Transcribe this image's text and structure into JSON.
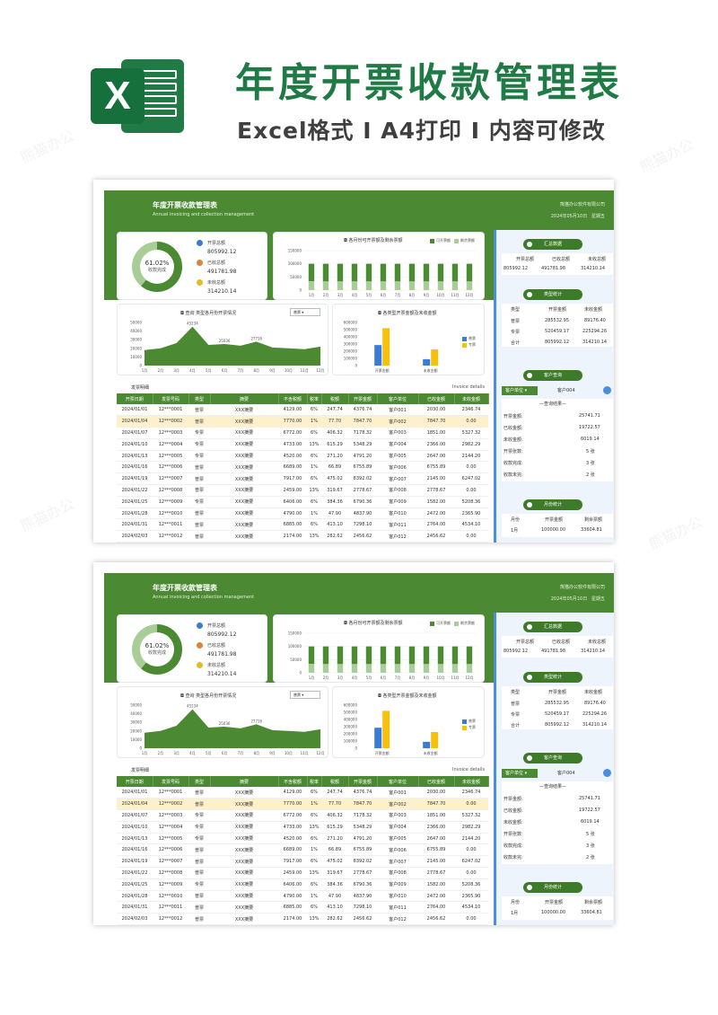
{
  "header": {
    "title": "年度开票收款管理表",
    "subtitle": "Excel格式 Ⅰ A4打印 Ⅰ 内容可修改",
    "logo_icon": "excel-logo-icon",
    "logo_letter": "X",
    "watermark": "熊猫办公"
  },
  "sheet": {
    "title": "年度开票收款管理表",
    "subtitle": "Annual invoicing and collection management",
    "company": "熊猫办公软件有限公司",
    "date": "2024年05月10日",
    "weekday": "星期五",
    "donut": {
      "percent": "61.02%",
      "label": "收款完成",
      "fraction": 0.6102
    },
    "kpis": [
      {
        "label": "开票总额",
        "value": "805992.12",
        "color": "#3b7bd8"
      },
      {
        "label": "已收总额",
        "value": "491781.98",
        "color": "#e0823a"
      },
      {
        "label": "未收总额",
        "value": "314210.14",
        "color": "#e8b826"
      }
    ],
    "colors": {
      "accent": "#4b8a32",
      "light": "#a9cd96",
      "blue": "#3b7bd8",
      "yellow": "#f4c20d",
      "highlight": "#fdf1cc"
    },
    "monthly_chart_title": "各月份可开票额及剩余票额",
    "monthly_legend": [
      "可开票额",
      "剩余票额"
    ],
    "trend_chart_title": "查询 类型各月份开票情况",
    "trend_select": "普票",
    "type_chart_title": "各类型开票金额及未收金额",
    "details_title": "发票明细",
    "details_title_en": "Invoice details",
    "table_headers": [
      "开票日期",
      "发票号码",
      "类型",
      "摘要",
      "不含税额",
      "税率",
      "税额",
      "开票金额",
      "客户单位",
      "已收金额",
      "未收金额"
    ],
    "rows": [
      [
        "2024/01/01",
        "12***0001",
        "普票",
        "XXX摘要",
        "4129.00",
        "6%",
        "247.74",
        "4376.74",
        "客户001",
        "2030.00",
        "2346.74"
      ],
      [
        "2024/01/04",
        "12***0002",
        "普票",
        "XXX摘要",
        "7770.00",
        "1%",
        "77.70",
        "7847.70",
        "客户002",
        "7847.70",
        "0.00"
      ],
      [
        "2024/01/07",
        "12***0003",
        "专票",
        "XXX摘要",
        "6772.00",
        "6%",
        "406.32",
        "7178.32",
        "客户003",
        "1851.00",
        "5327.32"
      ],
      [
        "2024/01/10",
        "12***0004",
        "专票",
        "XXX摘要",
        "4733.00",
        "13%",
        "615.29",
        "5348.29",
        "客户004",
        "2366.00",
        "2982.29"
      ],
      [
        "2024/01/13",
        "12***0005",
        "专票",
        "XXX摘要",
        "4520.00",
        "6%",
        "271.20",
        "4791.20",
        "客户005",
        "2647.00",
        "2144.20"
      ],
      [
        "2024/01/16",
        "12***0006",
        "普票",
        "XXX摘要",
        "6689.00",
        "1%",
        "66.89",
        "6755.89",
        "客户006",
        "6755.89",
        "0.00"
      ],
      [
        "2024/01/19",
        "12***0007",
        "普票",
        "XXX摘要",
        "7917.00",
        "6%",
        "475.02",
        "8392.02",
        "客户007",
        "2145.00",
        "6247.02"
      ],
      [
        "2024/01/22",
        "12***0008",
        "普票",
        "XXX摘要",
        "2459.00",
        "13%",
        "319.67",
        "2778.67",
        "客户008",
        "2778.67",
        "0.00"
      ],
      [
        "2024/01/25",
        "12***0009",
        "专票",
        "XXX摘要",
        "6406.00",
        "6%",
        "384.36",
        "6790.36",
        "客户009",
        "1582.00",
        "5208.36"
      ],
      [
        "2024/01/28",
        "12***0010",
        "普票",
        "XXX摘要",
        "4790.00",
        "1%",
        "47.90",
        "4837.90",
        "客户010",
        "2472.00",
        "2365.90"
      ],
      [
        "2024/01/31",
        "12***0011",
        "普票",
        "XXX摘要",
        "6885.00",
        "6%",
        "413.10",
        "7298.10",
        "客户011",
        "2764.00",
        "4534.10"
      ],
      [
        "2024/02/03",
        "12***0012",
        "普票",
        "XXX摘要",
        "2174.00",
        "13%",
        "282.62",
        "2456.62",
        "客户012",
        "2456.62",
        "0.00"
      ]
    ],
    "side": {
      "summary_title": "汇总数据",
      "summary_headers": [
        "开票总额",
        "已收总额",
        "未收总额"
      ],
      "summary_values": [
        "805992.12",
        "491781.98",
        "314210.14"
      ],
      "type_title": "类型统计",
      "type_headers": [
        "类型",
        "开票金额",
        "未收金额"
      ],
      "type_rows": [
        [
          "普票",
          "285532.95",
          "89176.40"
        ],
        [
          "专票",
          "520459.17",
          "225294.26"
        ],
        [
          "合计",
          "805992.12",
          "314210.14"
        ]
      ],
      "client_title": "客户查询",
      "client_label": "客户单位",
      "client_value": "客户004",
      "client_result": "—查询结果—",
      "client_rows": [
        [
          "开票金额:",
          "25741.71"
        ],
        [
          "已收金额:",
          "19722.57"
        ],
        [
          "未收金额:",
          "6019.14"
        ],
        [
          "开票张数:",
          "5 张"
        ],
        [
          "收款完成:",
          "3 张"
        ],
        [
          "收款未完:",
          "2 张"
        ]
      ],
      "month_title": "月份统计",
      "month_headers": [
        "月份",
        "开票金额",
        "剩余票额"
      ],
      "month_row": [
        "1月",
        "100000.00",
        "33604.81"
      ]
    }
  },
  "chart_data": [
    {
      "type": "bar",
      "title": "各月份可开票额及剩余票额",
      "categories": [
        "1月",
        "2月",
        "3月",
        "4月",
        "5月",
        "6月",
        "7月",
        "8月",
        "9月",
        "10月",
        "11月",
        "12月"
      ],
      "series": [
        {
          "name": "可开票额",
          "values": [
            100000,
            100000,
            100000,
            100000,
            100000,
            100000,
            100000,
            100000,
            100000,
            100000,
            100000,
            100000
          ]
        },
        {
          "name": "剩余票额",
          "values": [
            33605,
            33000,
            33000,
            33000,
            33000,
            33000,
            33000,
            33000,
            33000,
            33000,
            33000,
            33000
          ]
        }
      ],
      "yticks": [
        "150000",
        "100000",
        "50000",
        "0"
      ],
      "ylim": [
        0,
        150000
      ]
    },
    {
      "type": "area",
      "title": "查询 类型各月份开票情况",
      "categories": [
        "1月",
        "2月",
        "3月",
        "4月",
        "5月",
        "6月",
        "7月",
        "8月",
        "9月",
        "10月",
        "11月",
        "12月"
      ],
      "values": [
        18000,
        20000,
        26000,
        45234,
        24000,
        25036,
        23000,
        27716,
        21000,
        20000,
        19000,
        22000
      ],
      "labels": [
        "45234",
        "25036",
        "27716"
      ],
      "yticks": [
        "50000",
        "40000",
        "30000",
        "20000",
        "10000",
        "0"
      ],
      "ylim": [
        0,
        50000
      ]
    },
    {
      "type": "bar",
      "title": "各类型开票金额及未收金额",
      "categories": [
        "开票金额",
        "未收金额"
      ],
      "series": [
        {
          "name": "普票",
          "values": [
            285533,
            89176
          ]
        },
        {
          "name": "专票",
          "values": [
            520459,
            225294
          ]
        }
      ],
      "yticks": [
        "600000",
        "500000",
        "400000",
        "300000",
        "200000",
        "100000",
        "0"
      ],
      "ylim": [
        0,
        600000
      ]
    }
  ]
}
